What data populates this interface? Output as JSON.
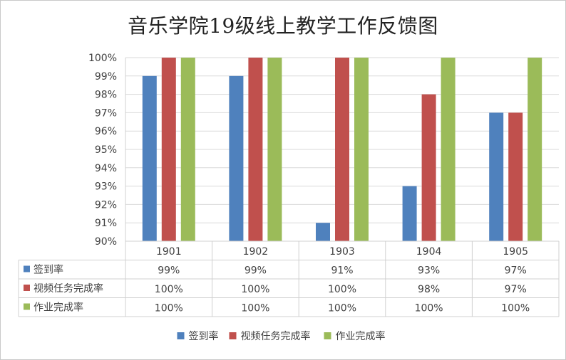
{
  "chart_data": {
    "type": "bar",
    "title": "音乐学院19级线上教学工作反馈图",
    "categories": [
      "1901",
      "1902",
      "1903",
      "1904",
      "1905"
    ],
    "series": [
      {
        "name": "签到率",
        "color": "#4f81bd",
        "values": [
          99,
          99,
          91,
          93,
          97
        ],
        "labels": [
          "99%",
          "99%",
          "91%",
          "93%",
          "97%"
        ]
      },
      {
        "name": "视频任务完成率",
        "color": "#c0504d",
        "values": [
          100,
          100,
          100,
          98,
          97
        ],
        "labels": [
          "100%",
          "100%",
          "100%",
          "98%",
          "97%"
        ]
      },
      {
        "name": "作业完成率",
        "color": "#9bbb59",
        "values": [
          100,
          100,
          100,
          100,
          100
        ],
        "labels": [
          "100%",
          "100%",
          "100%",
          "100%",
          "100%"
        ]
      }
    ],
    "ylim": [
      90,
      100
    ],
    "yticks": [
      "90%",
      "91%",
      "92%",
      "93%",
      "94%",
      "95%",
      "96%",
      "97%",
      "98%",
      "99%",
      "100%"
    ],
    "grid": true,
    "legend": "bottom",
    "data_table": true
  }
}
